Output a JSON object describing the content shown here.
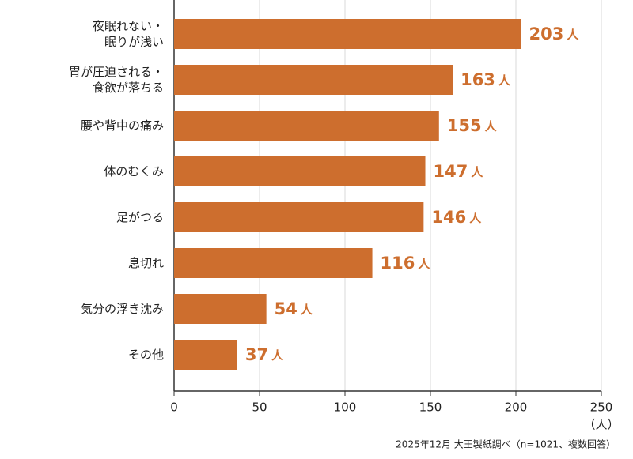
{
  "chart_data": {
    "type": "bar",
    "orientation": "horizontal",
    "categories": [
      "夜眠れない・\n眠りが浅い",
      "胃が圧迫される・\n食欲が落ちる",
      "腰や背中の痛み",
      "体のむくみ",
      "足がつる",
      "息切れ",
      "気分の浮き沈み",
      "その他"
    ],
    "values": [
      203,
      163,
      155,
      147,
      146,
      116,
      54,
      37
    ],
    "value_unit": "人",
    "color": "#cd6e2e",
    "xlim": [
      0,
      250
    ],
    "xticks": [
      0,
      50,
      100,
      150,
      200,
      250
    ],
    "x_label": "（人）",
    "grid": true,
    "source": "2025年12月 大王製紙調べ（n=1021、複数回答）"
  }
}
